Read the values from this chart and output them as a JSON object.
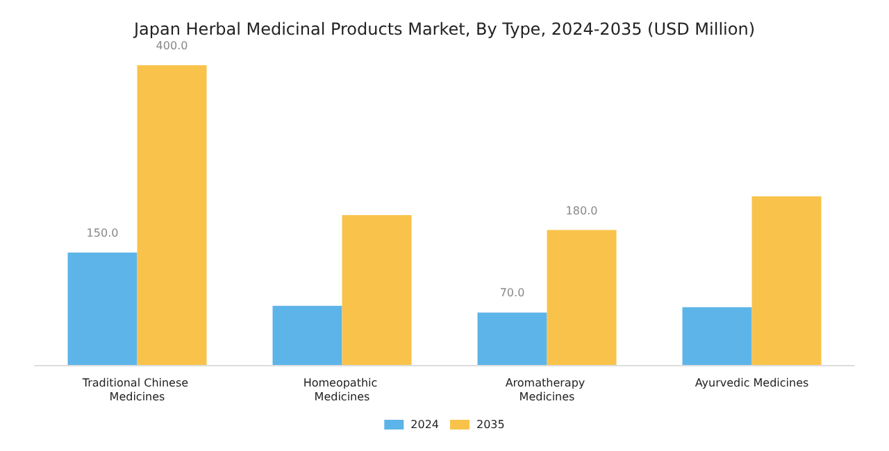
{
  "chart_data": {
    "type": "bar",
    "title": "Japan Herbal Medicinal Products Market, By Type, 2024-2035 (USD Million)",
    "categories": [
      "Traditional Chinese Medicines",
      "Homeopathic Medicines",
      "Aromatherapy Medicines",
      "Ayurvedic Medicines"
    ],
    "series": [
      {
        "name": "2024",
        "color": "#5db4e8",
        "values": [
          150,
          79,
          70,
          77
        ],
        "value_labels": [
          "150.0",
          null,
          "70.0",
          null
        ]
      },
      {
        "name": "2035",
        "color": "#f9c34b",
        "values": [
          400,
          200,
          180,
          225
        ],
        "value_labels": [
          "400.0",
          null,
          "180.0",
          null
        ]
      }
    ],
    "legend": "bottom",
    "grid": false,
    "tick_labels": "x"
  }
}
